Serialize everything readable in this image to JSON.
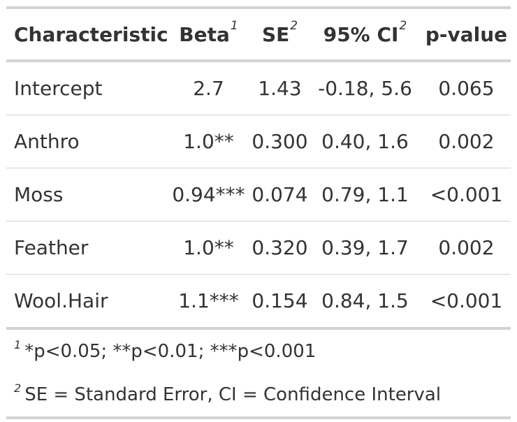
{
  "table": {
    "headers": [
      {
        "label": "Characteristic",
        "footnote": ""
      },
      {
        "label": "Beta",
        "footnote": "1"
      },
      {
        "label": "SE",
        "footnote": "2"
      },
      {
        "label": "95% CI",
        "footnote": "2"
      },
      {
        "label": "p-value",
        "footnote": ""
      }
    ],
    "rows": [
      {
        "characteristic": "Intercept",
        "beta": "2.7",
        "se": "1.43",
        "ci": "-0.18, 5.6",
        "p": "0.065"
      },
      {
        "characteristic": "Anthro",
        "beta": "1.0**",
        "se": "0.300",
        "ci": "0.40, 1.6",
        "p": "0.002"
      },
      {
        "characteristic": "Moss",
        "beta": "0.94***",
        "se": "0.074",
        "ci": "0.79, 1.1",
        "p": "<0.001"
      },
      {
        "characteristic": "Feather",
        "beta": "1.0**",
        "se": "0.320",
        "ci": "0.39, 1.7",
        "p": "0.002"
      },
      {
        "characteristic": "Wool.Hair",
        "beta": "1.1***",
        "se": "0.154",
        "ci": "0.84, 1.5",
        "p": "<0.001"
      }
    ]
  },
  "footnotes": [
    {
      "marker": "1",
      "text": "*p<0.05; **p<0.01; ***p<0.001"
    },
    {
      "marker": "2",
      "text": "SE = Standard Error, CI = Confidence Interval"
    }
  ]
}
